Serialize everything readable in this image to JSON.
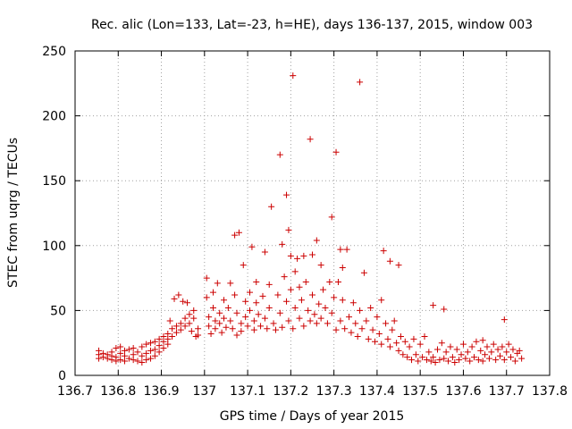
{
  "chart_data": {
    "type": "scatter",
    "title": "Rec. alic (Lon=133, Lat=-23, h=HE), days 136-137, 2015, window 003",
    "xlabel": "GPS time / Days of year 2015",
    "ylabel": "STEC from uqrg / TECUs",
    "xlim": [
      136.7,
      137.8
    ],
    "ylim": [
      0,
      250
    ],
    "xticks": [
      136.7,
      136.8,
      136.9,
      137.0,
      137.1,
      137.2,
      137.3,
      137.4,
      137.5,
      137.6,
      137.7,
      137.8
    ],
    "xtick_labels": [
      "136.7",
      "136.8",
      "136.9",
      "137",
      "137.1",
      "137.2",
      "137.3",
      "137.4",
      "137.5",
      "137.6",
      "137.7",
      "137.8"
    ],
    "yticks": [
      0,
      50,
      100,
      150,
      200,
      250
    ],
    "ytick_labels": [
      "0",
      "50",
      "100",
      "150",
      "200",
      "250"
    ],
    "grid": true,
    "marker": "plus",
    "color": "#cc0000",
    "points": [
      [
        136.755,
        19
      ],
      [
        136.755,
        16
      ],
      [
        136.755,
        13
      ],
      [
        136.765,
        17
      ],
      [
        136.765,
        14
      ],
      [
        136.775,
        16
      ],
      [
        136.775,
        13
      ],
      [
        136.785,
        18
      ],
      [
        136.785,
        15
      ],
      [
        136.785,
        12
      ],
      [
        136.795,
        21
      ],
      [
        136.795,
        14
      ],
      [
        136.795,
        11
      ],
      [
        136.805,
        22
      ],
      [
        136.805,
        17
      ],
      [
        136.805,
        12
      ],
      [
        136.815,
        19
      ],
      [
        136.815,
        15
      ],
      [
        136.815,
        11
      ],
      [
        136.825,
        20
      ],
      [
        136.825,
        13
      ],
      [
        136.835,
        21
      ],
      [
        136.835,
        16
      ],
      [
        136.835,
        12
      ],
      [
        136.845,
        18
      ],
      [
        136.845,
        11
      ],
      [
        136.855,
        22
      ],
      [
        136.855,
        15
      ],
      [
        136.855,
        10
      ],
      [
        136.865,
        24
      ],
      [
        136.865,
        17
      ],
      [
        136.865,
        12
      ],
      [
        136.875,
        25
      ],
      [
        136.875,
        19
      ],
      [
        136.875,
        13
      ],
      [
        136.885,
        26
      ],
      [
        136.885,
        20
      ],
      [
        136.885,
        15
      ],
      [
        136.895,
        28
      ],
      [
        136.895,
        23
      ],
      [
        136.895,
        18
      ],
      [
        136.905,
        30
      ],
      [
        136.905,
        26
      ],
      [
        136.905,
        21
      ],
      [
        136.915,
        32
      ],
      [
        136.915,
        28
      ],
      [
        136.915,
        24
      ],
      [
        136.92,
        42
      ],
      [
        136.925,
        36
      ],
      [
        136.925,
        30
      ],
      [
        136.93,
        59
      ],
      [
        136.935,
        38
      ],
      [
        136.935,
        33
      ],
      [
        136.94,
        62
      ],
      [
        136.945,
        40
      ],
      [
        136.945,
        35
      ],
      [
        136.95,
        57
      ],
      [
        136.955,
        44
      ],
      [
        136.955,
        38
      ],
      [
        136.96,
        56
      ],
      [
        136.965,
        47
      ],
      [
        136.965,
        40
      ],
      [
        136.97,
        34
      ],
      [
        136.975,
        50
      ],
      [
        136.975,
        44
      ],
      [
        136.98,
        30
      ],
      [
        136.985,
        36
      ],
      [
        136.985,
        31
      ],
      [
        137.005,
        75
      ],
      [
        137.005,
        60
      ],
      [
        137.01,
        45
      ],
      [
        137.01,
        38
      ],
      [
        137.015,
        32
      ],
      [
        137.02,
        64
      ],
      [
        137.02,
        52
      ],
      [
        137.025,
        42
      ],
      [
        137.025,
        36
      ],
      [
        137.03,
        71
      ],
      [
        137.035,
        48
      ],
      [
        137.035,
        40
      ],
      [
        137.04,
        33
      ],
      [
        137.045,
        58
      ],
      [
        137.045,
        44
      ],
      [
        137.05,
        37
      ],
      [
        137.055,
        52
      ],
      [
        137.06,
        71
      ],
      [
        137.06,
        42
      ],
      [
        137.065,
        36
      ],
      [
        137.07,
        108
      ],
      [
        137.07,
        62
      ],
      [
        137.075,
        48
      ],
      [
        137.075,
        31
      ],
      [
        137.08,
        110
      ],
      [
        137.085,
        40
      ],
      [
        137.085,
        34
      ],
      [
        137.09,
        85
      ],
      [
        137.095,
        57
      ],
      [
        137.095,
        45
      ],
      [
        137.1,
        38
      ],
      [
        137.105,
        64
      ],
      [
        137.105,
        50
      ],
      [
        137.11,
        99
      ],
      [
        137.115,
        42
      ],
      [
        137.115,
        35
      ],
      [
        137.12,
        72
      ],
      [
        137.12,
        56
      ],
      [
        137.125,
        47
      ],
      [
        137.13,
        38
      ],
      [
        137.135,
        61
      ],
      [
        137.14,
        95
      ],
      [
        137.14,
        44
      ],
      [
        137.145,
        36
      ],
      [
        137.15,
        70
      ],
      [
        137.15,
        52
      ],
      [
        137.155,
        130
      ],
      [
        137.16,
        40
      ],
      [
        137.165,
        35
      ],
      [
        137.17,
        62
      ],
      [
        137.175,
        170
      ],
      [
        137.175,
        48
      ],
      [
        137.18,
        101
      ],
      [
        137.18,
        37
      ],
      [
        137.185,
        76
      ],
      [
        137.19,
        139
      ],
      [
        137.19,
        57
      ],
      [
        137.195,
        112
      ],
      [
        137.195,
        42
      ],
      [
        137.2,
        92
      ],
      [
        137.2,
        66
      ],
      [
        137.205,
        231
      ],
      [
        137.205,
        36
      ],
      [
        137.21,
        80
      ],
      [
        137.21,
        52
      ],
      [
        137.215,
        90
      ],
      [
        137.22,
        68
      ],
      [
        137.22,
        44
      ],
      [
        137.225,
        58
      ],
      [
        137.23,
        92
      ],
      [
        137.23,
        38
      ],
      [
        137.235,
        72
      ],
      [
        137.24,
        50
      ],
      [
        137.245,
        182
      ],
      [
        137.245,
        42
      ],
      [
        137.25,
        93
      ],
      [
        137.25,
        62
      ],
      [
        137.255,
        47
      ],
      [
        137.26,
        104
      ],
      [
        137.26,
        40
      ],
      [
        137.265,
        55
      ],
      [
        137.27,
        85
      ],
      [
        137.27,
        44
      ],
      [
        137.275,
        66
      ],
      [
        137.28,
        52
      ],
      [
        137.285,
        40
      ],
      [
        137.29,
        72
      ],
      [
        137.295,
        122
      ],
      [
        137.295,
        48
      ],
      [
        137.3,
        60
      ],
      [
        137.305,
        172
      ],
      [
        137.305,
        35
      ],
      [
        137.31,
        72
      ],
      [
        137.315,
        97
      ],
      [
        137.315,
        42
      ],
      [
        137.32,
        83
      ],
      [
        137.32,
        58
      ],
      [
        137.325,
        36
      ],
      [
        137.33,
        97
      ],
      [
        137.335,
        45
      ],
      [
        137.34,
        33
      ],
      [
        137.345,
        56
      ],
      [
        137.35,
        40
      ],
      [
        137.355,
        30
      ],
      [
        137.36,
        226
      ],
      [
        137.36,
        50
      ],
      [
        137.365,
        36
      ],
      [
        137.37,
        79
      ],
      [
        137.375,
        42
      ],
      [
        137.38,
        28
      ],
      [
        137.385,
        52
      ],
      [
        137.39,
        35
      ],
      [
        137.395,
        26
      ],
      [
        137.4,
        45
      ],
      [
        137.405,
        32
      ],
      [
        137.41,
        58
      ],
      [
        137.41,
        24
      ],
      [
        137.415,
        96
      ],
      [
        137.42,
        40
      ],
      [
        137.425,
        28
      ],
      [
        137.43,
        88
      ],
      [
        137.43,
        22
      ],
      [
        137.435,
        35
      ],
      [
        137.44,
        42
      ],
      [
        137.445,
        25
      ],
      [
        137.45,
        85
      ],
      [
        137.45,
        19
      ],
      [
        137.455,
        30
      ],
      [
        137.46,
        16
      ],
      [
        137.465,
        26
      ],
      [
        137.47,
        14
      ],
      [
        137.475,
        22
      ],
      [
        137.48,
        12
      ],
      [
        137.485,
        28
      ],
      [
        137.49,
        16
      ],
      [
        137.495,
        11
      ],
      [
        137.5,
        24
      ],
      [
        137.505,
        14
      ],
      [
        137.51,
        30
      ],
      [
        137.515,
        12
      ],
      [
        137.52,
        18
      ],
      [
        137.525,
        11
      ],
      [
        137.53,
        54
      ],
      [
        137.53,
        14
      ],
      [
        137.535,
        10
      ],
      [
        137.54,
        20
      ],
      [
        137.545,
        12
      ],
      [
        137.55,
        25
      ],
      [
        137.555,
        51
      ],
      [
        137.555,
        13
      ],
      [
        137.56,
        18
      ],
      [
        137.565,
        11
      ],
      [
        137.57,
        22
      ],
      [
        137.575,
        14
      ],
      [
        137.58,
        10
      ],
      [
        137.585,
        20
      ],
      [
        137.59,
        12
      ],
      [
        137.595,
        16
      ],
      [
        137.6,
        24
      ],
      [
        137.605,
        13
      ],
      [
        137.61,
        18
      ],
      [
        137.615,
        11
      ],
      [
        137.62,
        22
      ],
      [
        137.625,
        14
      ],
      [
        137.63,
        26
      ],
      [
        137.635,
        12
      ],
      [
        137.64,
        19
      ],
      [
        137.645,
        27
      ],
      [
        137.645,
        11
      ],
      [
        137.65,
        16
      ],
      [
        137.655,
        22
      ],
      [
        137.66,
        13
      ],
      [
        137.665,
        18
      ],
      [
        137.67,
        24
      ],
      [
        137.675,
        12
      ],
      [
        137.68,
        20
      ],
      [
        137.685,
        15
      ],
      [
        137.69,
        22
      ],
      [
        137.695,
        43
      ],
      [
        137.695,
        12
      ],
      [
        137.7,
        18
      ],
      [
        137.705,
        24
      ],
      [
        137.71,
        14
      ],
      [
        137.715,
        20
      ],
      [
        137.72,
        11
      ],
      [
        137.725,
        17
      ],
      [
        137.73,
        19
      ],
      [
        137.735,
        13
      ]
    ]
  }
}
